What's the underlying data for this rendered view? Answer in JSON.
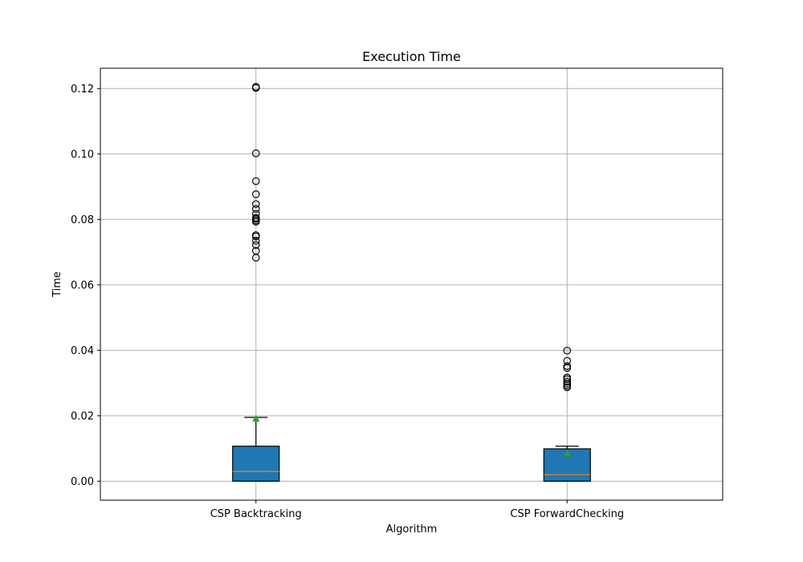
{
  "chart_data": {
    "type": "box",
    "title": "Execution Time",
    "xlabel": "Algorithm",
    "ylabel": "Time",
    "ylim": [
      -0.0058,
      0.1262
    ],
    "yticks": [
      "0.00",
      "0.02",
      "0.04",
      "0.06",
      "0.08",
      "0.10",
      "0.12"
    ],
    "grid": true,
    "colors": {
      "box_fill": "#1f77b4",
      "median": "#ff7f0e",
      "mean_marker": "#2ca02c",
      "grid": "#b0b0b0"
    },
    "series": [
      {
        "category": "CSP Backtracking",
        "whisker_low": 0.0,
        "q1": 0.0,
        "median": 0.003,
        "q3": 0.0107,
        "whisker_high": 0.0195,
        "mean": 0.0192,
        "outliers": [
          0.0683,
          0.0704,
          0.0722,
          0.0735,
          0.0748,
          0.0752,
          0.0793,
          0.0797,
          0.0802,
          0.0805,
          0.0817,
          0.0832,
          0.0847,
          0.0877,
          0.0917,
          0.1002,
          0.1202,
          0.1205
        ]
      },
      {
        "category": "CSP ForwardChecking",
        "whisker_low": 0.0,
        "q1": 0.0,
        "median": 0.002,
        "q3": 0.0099,
        "whisker_high": 0.0107,
        "mean": 0.0085,
        "outliers": [
          0.0287,
          0.0292,
          0.0298,
          0.0304,
          0.0312,
          0.0317,
          0.0346,
          0.0352,
          0.0368,
          0.0399
        ]
      }
    ]
  }
}
